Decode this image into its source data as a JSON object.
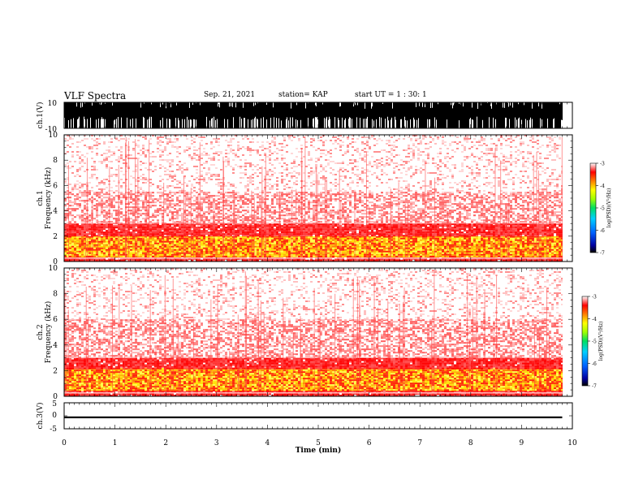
{
  "header": {
    "title": "VLF Spectra",
    "date": "Sep. 21, 2021",
    "station": "station= KAP",
    "start": "start  UT =   1 : 30: 1"
  },
  "chart_data": [
    {
      "type": "line",
      "name": "ch1-waveform",
      "ylabel": "ch.1(V)",
      "ylim": [
        -10,
        10
      ],
      "yticks": [
        "10",
        "-10"
      ],
      "xlim": [
        0,
        10
      ],
      "description_level": "saturated signal between -10 and 10 V from 0 to ~9.8 min"
    },
    {
      "type": "heatmap",
      "name": "ch1-spectrogram",
      "ylabel": "ch.1\nFrequency (kHz)",
      "ylim": [
        0,
        10
      ],
      "yticks": [
        "0",
        "2",
        "4",
        "6",
        "8",
        "10"
      ],
      "xlim": [
        0,
        10
      ],
      "data_end_x": 9.8,
      "colorbar": {
        "label": "log(PSD)(V²/Hz)",
        "ticks": [
          "-3",
          "-4",
          "-5",
          "-6",
          "-7"
        ],
        "range": [
          -7,
          -3
        ]
      },
      "bands": [
        {
          "from_khz": 0,
          "to_khz": 0.4,
          "level": "red"
        },
        {
          "from_khz": 0.4,
          "to_khz": 2.0,
          "level": "yellow-orange"
        },
        {
          "from_khz": 2.0,
          "to_khz": 3.0,
          "level": "red"
        },
        {
          "from_khz": 3.0,
          "to_khz": 5.5,
          "level": "light-red"
        },
        {
          "from_khz": 5.5,
          "to_khz": 10,
          "level": "sparse-red"
        }
      ]
    },
    {
      "type": "heatmap",
      "name": "ch2-spectrogram",
      "ylabel": "ch.2\nFrequency (kHz)",
      "ylim": [
        0,
        10
      ],
      "yticks": [
        "0",
        "2",
        "4",
        "6",
        "8",
        "10"
      ],
      "xlim": [
        0,
        10
      ],
      "data_end_x": 9.8,
      "colorbar": {
        "label": "log(PSD)(V²/Hz)",
        "ticks": [
          "-3",
          "-4",
          "-5",
          "-6",
          "-7"
        ],
        "range": [
          -7,
          -3
        ]
      },
      "bands": [
        {
          "from_khz": 0,
          "to_khz": 0.5,
          "level": "red"
        },
        {
          "from_khz": 0.5,
          "to_khz": 2.2,
          "level": "yellow-orange"
        },
        {
          "from_khz": 2.2,
          "to_khz": 3.0,
          "level": "red"
        },
        {
          "from_khz": 3.0,
          "to_khz": 6.0,
          "level": "light-red"
        },
        {
          "from_khz": 6.0,
          "to_khz": 10,
          "level": "sparse-red"
        }
      ]
    },
    {
      "type": "line",
      "name": "ch3-waveform",
      "ylabel": "ch.3(V)",
      "ylim": [
        -5,
        5
      ],
      "yticks": [
        "5",
        "0",
        "-5"
      ],
      "xlim": [
        0,
        10
      ],
      "xlabel": "Time (min)",
      "xticks": [
        "0",
        "1",
        "2",
        "3",
        "4",
        "5",
        "6",
        "7",
        "8",
        "9",
        "10"
      ],
      "baseline_v": -0.6
    }
  ],
  "colors": {
    "axis": "#000000",
    "spec_red": "#ff2020",
    "spec_light": "#ff9a9a",
    "spec_yellow": "#ffe000",
    "spec_orange": "#ff8000"
  }
}
